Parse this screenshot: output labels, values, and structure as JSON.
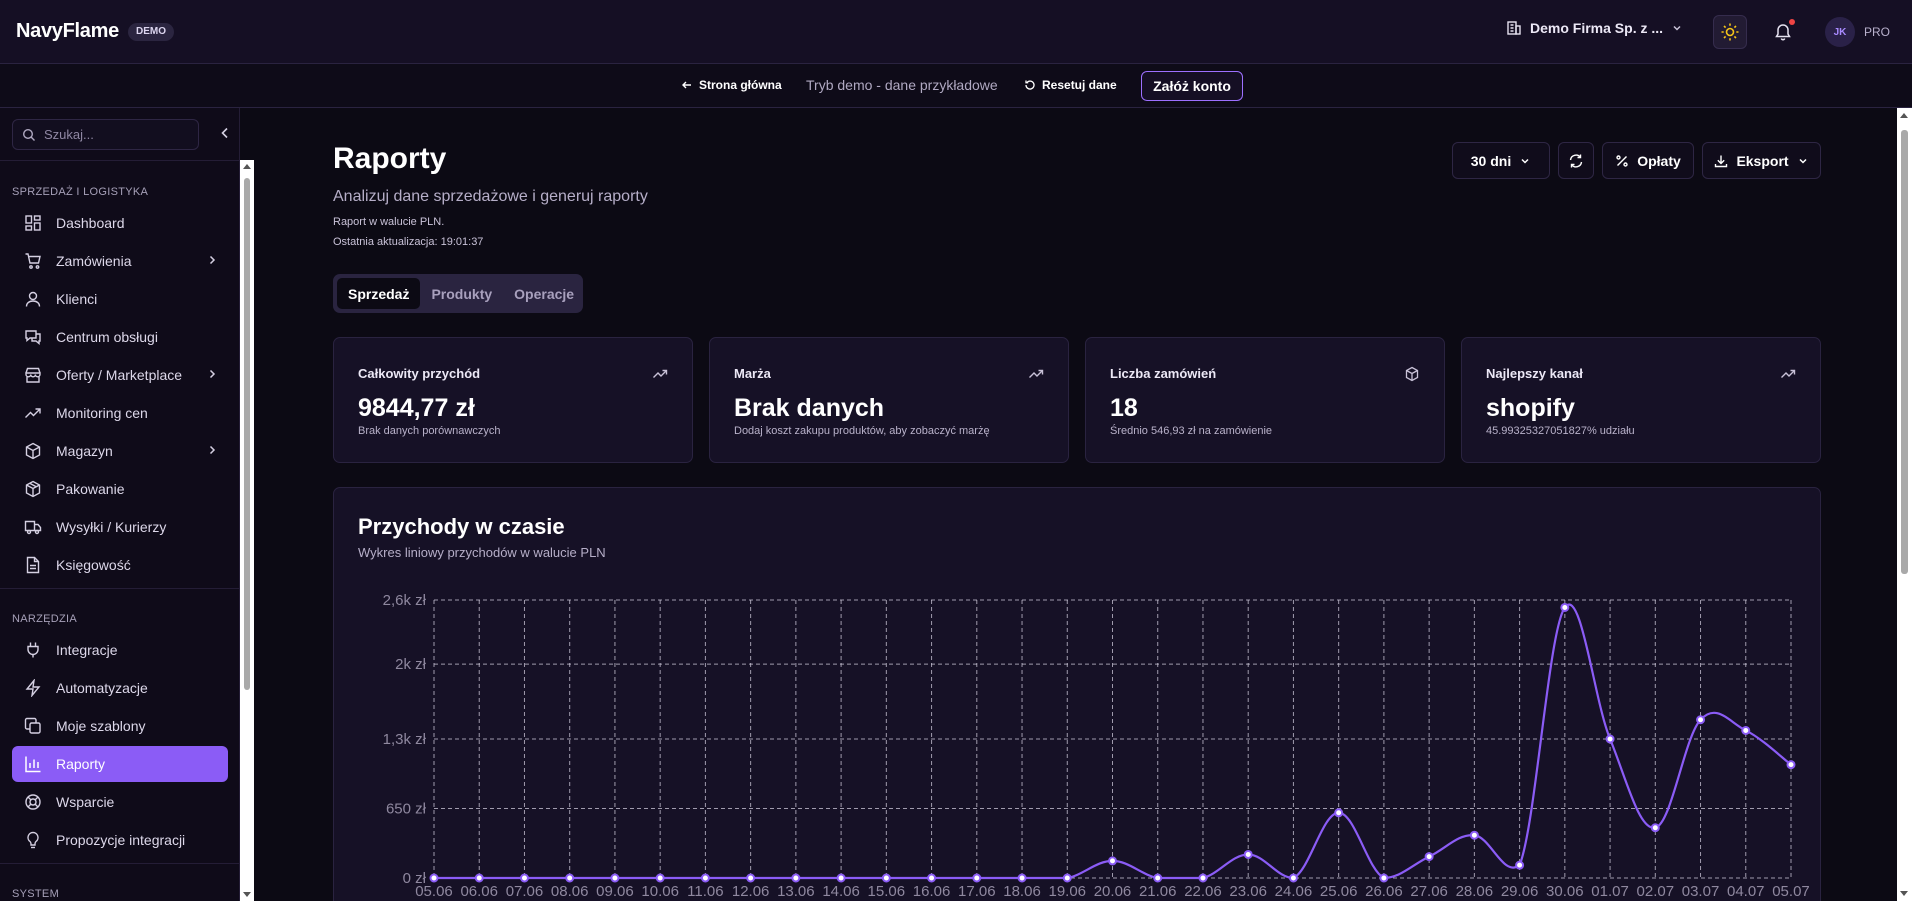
{
  "header": {
    "brand": "NavyFlame",
    "badge": "DEMO",
    "company": "Demo Firma Sp. z ...",
    "avatar_initials": "JK",
    "plan": "PRO",
    "notification_dot_color": "#ef4444"
  },
  "demo_bar": {
    "home_label": "Strona główna",
    "mode_text": "Tryb demo - dane przykładowe",
    "reset_label": "Resetuj dane",
    "signup_label": "Załóż konto"
  },
  "sidebar": {
    "search_placeholder": "Szukaj...",
    "groups": [
      {
        "label": "SPRZEDAŻ I LOGISTYKA",
        "items": [
          {
            "label": "Dashboard",
            "icon": "grid-icon"
          },
          {
            "label": "Zamówienia",
            "icon": "cart-icon",
            "expandable": true
          },
          {
            "label": "Klienci",
            "icon": "user-icon"
          },
          {
            "label": "Centrum obsługi",
            "icon": "chat-icon"
          },
          {
            "label": "Oferty / Marketplace",
            "icon": "store-icon",
            "expandable": true
          },
          {
            "label": "Monitoring cen",
            "icon": "trend-icon"
          },
          {
            "label": "Magazyn",
            "icon": "box-icon",
            "expandable": true
          },
          {
            "label": "Pakowanie",
            "icon": "package-icon"
          },
          {
            "label": "Wysyłki / Kurierzy",
            "icon": "truck-icon"
          },
          {
            "label": "Księgowość",
            "icon": "document-icon"
          }
        ]
      },
      {
        "label": "NARZĘDZIA",
        "items": [
          {
            "label": "Integracje",
            "icon": "plug-icon"
          },
          {
            "label": "Automatyzacje",
            "icon": "zap-icon"
          },
          {
            "label": "Moje szablony",
            "icon": "copy-icon"
          },
          {
            "label": "Raporty",
            "icon": "bar-chart-icon",
            "active": true
          },
          {
            "label": "Wsparcie",
            "icon": "lifebuoy-icon"
          },
          {
            "label": "Propozycje integracji",
            "icon": "lightbulb-icon"
          }
        ]
      },
      {
        "label": "SYSTEM",
        "items": []
      }
    ]
  },
  "page": {
    "title": "Raporty",
    "subtitle": "Analizuj dane sprzedażowe i generuj raporty",
    "currency_note": "Raport w walucie PLN.",
    "last_update": "Ostatnia aktualizacja: 19:01:37",
    "toolbar": {
      "range_label": "30 dni",
      "fees_label": "Opłaty",
      "export_label": "Eksport"
    },
    "tabs": [
      {
        "label": "Sprzedaż",
        "active": true
      },
      {
        "label": "Produkty",
        "active": false
      },
      {
        "label": "Operacje",
        "active": false
      }
    ],
    "cards": [
      {
        "label": "Całkowity przychód",
        "value": "9844,77 zł",
        "note": "Brak danych porównawczych",
        "icon": "trend-up-icon"
      },
      {
        "label": "Marża",
        "value": "Brak danych",
        "note": "Dodaj koszt zakupu produktów, aby zobaczyć marżę",
        "icon": "trend-up-icon"
      },
      {
        "label": "Liczba zamówień",
        "value": "18",
        "note": "Średnio 546,93 zł na zamówienie",
        "icon": "cube-icon"
      },
      {
        "label": "Najlepszy kanał",
        "value": "shopify",
        "note": "45.99325327051827% udziału",
        "icon": "trend-up-icon"
      }
    ]
  },
  "chart_data": {
    "type": "line",
    "title": "Przychody w czasie",
    "subtitle": "Wykres liniowy przychodów w walucie PLN",
    "x": [
      "05.06",
      "06.06",
      "07.06",
      "08.06",
      "09.06",
      "10.06",
      "11.06",
      "12.06",
      "13.06",
      "14.06",
      "15.06",
      "16.06",
      "17.06",
      "18.06",
      "19.06",
      "20.06",
      "21.06",
      "22.06",
      "23.06",
      "24.06",
      "25.06",
      "26.06",
      "27.06",
      "28.06",
      "29.06",
      "30.06",
      "01.07",
      "02.07",
      "03.07",
      "04.07",
      "05.07"
    ],
    "series": [
      {
        "values": [
          0,
          0,
          0,
          0,
          0,
          0,
          0,
          0,
          0,
          0,
          0,
          0,
          0,
          0,
          0,
          160,
          0,
          0,
          220,
          0,
          610,
          0,
          200,
          400,
          120,
          2530,
          1300,
          470,
          1480,
          1380,
          1060
        ]
      }
    ],
    "ylim": [
      0,
      2600
    ],
    "yticks": [
      0,
      650,
      1300,
      2000,
      2600
    ],
    "ytick_labels": [
      "0 zł",
      "650 zł",
      "1,3k zł",
      "2k zł",
      "2,6k zł"
    ],
    "grid": true,
    "line_color": "#8b5cf6"
  },
  "colors": {
    "accent": "#8b5cf6",
    "background": "#0c0a14",
    "card": "#161126"
  }
}
